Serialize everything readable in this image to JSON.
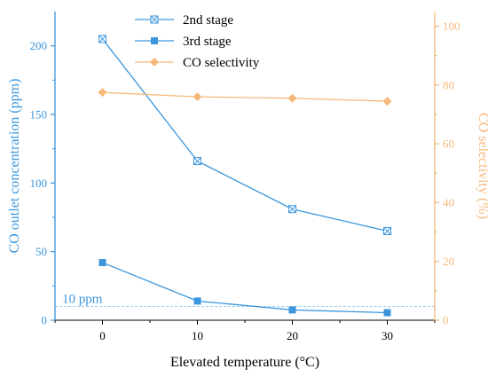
{
  "chart_data": {
    "type": "line",
    "xlabel": "Elevated temperature (°C)",
    "x": [
      0,
      10,
      20,
      30
    ],
    "xlim": [
      -5,
      35
    ],
    "x_ticks": [
      0,
      10,
      20,
      30
    ],
    "y_left": {
      "label": "CO outlet concentration (ppm)",
      "range": [
        0,
        225
      ],
      "ticks": [
        0,
        50,
        100,
        150,
        200
      ],
      "color": "#3a96dd"
    },
    "y_right": {
      "label": "CO selectivity (%)",
      "range": [
        0,
        105
      ],
      "ticks": [
        0,
        20,
        40,
        60,
        80,
        100
      ],
      "color": "#f5b87a"
    },
    "series": [
      {
        "name": "2nd stage",
        "axis": "left",
        "marker": "boxed-x",
        "color": "#3a96dd",
        "values": [
          205,
          116,
          81,
          65
        ]
      },
      {
        "name": "3rd stage",
        "axis": "left",
        "marker": "filled-square",
        "color": "#3a96dd",
        "values": [
          42,
          14,
          7.5,
          5.5
        ]
      },
      {
        "name": "CO selectivity",
        "axis": "right",
        "marker": "filled-diamond",
        "color": "#f5b87a",
        "values": [
          77.5,
          76,
          75.5,
          74.5
        ]
      }
    ],
    "reference_line": {
      "value": 10,
      "axis": "left",
      "label": "10 ppm",
      "style": "dashed",
      "color": "#7cc4ec"
    },
    "legend_position": "top-center",
    "grid": false
  }
}
